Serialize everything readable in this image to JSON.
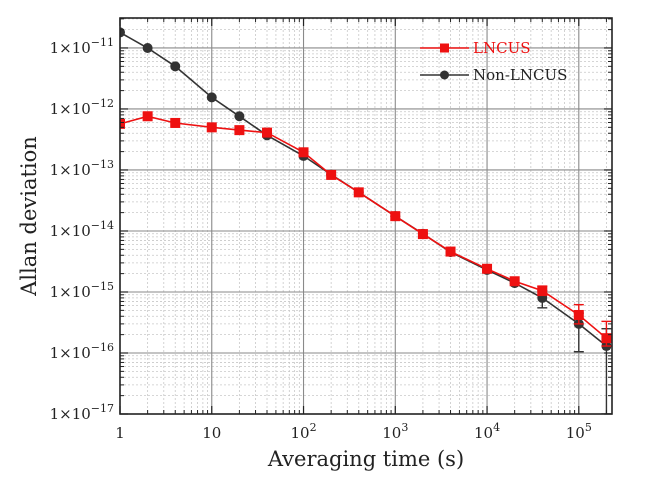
{
  "chart_data": {
    "type": "line",
    "title": "",
    "xlabel": "Averaging time (s)",
    "ylabel": "Allan deviation",
    "xscale": "log",
    "yscale": "log",
    "xlim": [
      1,
      230000
    ],
    "ylim": [
      1e-17,
      3.1e-11
    ],
    "grid": true,
    "legend_position": "top-right",
    "x_ticks": [
      {
        "value": 1,
        "label": "1"
      },
      {
        "value": 10,
        "label": "10"
      },
      {
        "value": 100,
        "base": "10",
        "exp": "2"
      },
      {
        "value": 1000,
        "base": "10",
        "exp": "3"
      },
      {
        "value": 10000,
        "base": "10",
        "exp": "4"
      },
      {
        "value": 100000,
        "base": "10",
        "exp": "5"
      }
    ],
    "y_ticks": [
      {
        "value": 1e-11,
        "mant": "1×10",
        "exp": "−11"
      },
      {
        "value": 1e-12,
        "mant": "1×10",
        "exp": "−12"
      },
      {
        "value": 1e-13,
        "mant": "1×10",
        "exp": "−13"
      },
      {
        "value": 1e-14,
        "mant": "1×10",
        "exp": "−14"
      },
      {
        "value": 1e-15,
        "mant": "1×10",
        "exp": "−15"
      },
      {
        "value": 1e-16,
        "mant": "1×10",
        "exp": "−16"
      },
      {
        "value": 1e-17,
        "mant": "1×10",
        "exp": "−17"
      }
    ],
    "series": [
      {
        "name": "LNCUS",
        "color": "#ee1111",
        "marker": "square",
        "x": [
          1,
          2,
          4,
          10,
          20,
          40,
          100,
          200,
          400,
          1000,
          2000,
          4000,
          10000,
          20000,
          40000,
          100000,
          200000
        ],
        "y": [
          5.7e-13,
          7.6e-13,
          5.9e-13,
          5e-13,
          4.5e-13,
          4.1e-13,
          1.95e-13,
          8.3e-14,
          4.3e-14,
          1.75e-14,
          8.9e-15,
          4.6e-15,
          2.4e-15,
          1.5e-15,
          1.05e-15,
          4.2e-16,
          1.75e-16
        ],
        "err_low": [
          null,
          null,
          null,
          null,
          null,
          null,
          null,
          null,
          null,
          null,
          null,
          null,
          null,
          null,
          8.8e-16,
          3e-16,
          1.3e-16
        ],
        "err_high": [
          null,
          null,
          null,
          null,
          null,
          null,
          null,
          null,
          null,
          null,
          null,
          null,
          null,
          null,
          1.25e-15,
          6.2e-16,
          3.3e-16
        ]
      },
      {
        "name": "Non-LNCUS",
        "color": "#333333",
        "marker": "circle",
        "x": [
          1,
          2,
          4,
          10,
          20,
          40,
          100,
          200,
          400,
          1000,
          2000,
          4000,
          10000,
          20000,
          40000,
          100000,
          200000
        ],
        "y": [
          1.8e-11,
          1e-11,
          5e-12,
          1.55e-12,
          7.6e-13,
          3.7e-13,
          1.7e-13,
          8.4e-14,
          4.3e-14,
          1.75e-14,
          9e-15,
          4.5e-15,
          2.3e-15,
          1.4e-15,
          8e-16,
          3e-16,
          1.3e-16
        ],
        "err_low": [
          null,
          null,
          null,
          null,
          null,
          null,
          null,
          null,
          null,
          null,
          null,
          null,
          null,
          null,
          5.5e-16,
          1.05e-16,
          1e-17
        ],
        "err_high": [
          null,
          null,
          null,
          null,
          null,
          null,
          null,
          null,
          null,
          null,
          null,
          null,
          null,
          null,
          1.05e-15,
          4.5e-16,
          2.5e-16
        ]
      }
    ]
  }
}
